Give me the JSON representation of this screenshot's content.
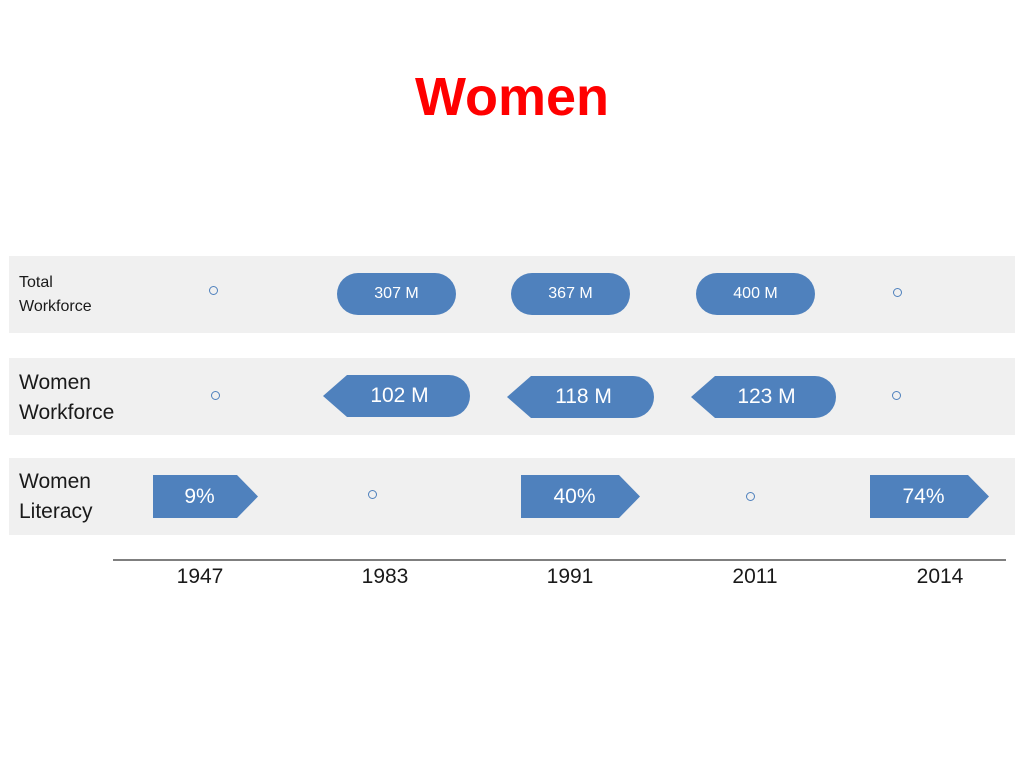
{
  "title": "Women",
  "rows": {
    "total_workforce": {
      "label_line1": "Total",
      "label_line2": "Workforce"
    },
    "women_workforce": {
      "label_line1": "Women",
      "label_line2": "Workforce"
    },
    "women_literacy": {
      "label_line1": "Women",
      "label_line2": "Literacy"
    }
  },
  "values": {
    "total_workforce": {
      "y1983": "307 M",
      "y1991": "367 M",
      "y2011": "400 M"
    },
    "women_workforce": {
      "y1983": "102 M",
      "y1991": "118 M",
      "y2011": "123 M"
    },
    "women_literacy": {
      "y1947": "9%",
      "y1991": "40%",
      "y2014": "74%"
    }
  },
  "years": [
    "1947",
    "1983",
    "1991",
    "2011",
    "2014"
  ],
  "colors": {
    "title": "#ff0000",
    "shape_fill": "#4f81bd",
    "band": "#f0f0f0",
    "axis": "#7f7f7f"
  }
}
